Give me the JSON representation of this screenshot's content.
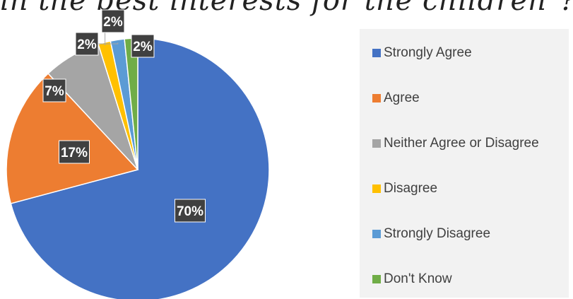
{
  "title": "in the best interests for the children\"?",
  "colors": {
    "strongly_agree": "#4472c4",
    "agree": "#ed7d31",
    "neither": "#a5a5a5",
    "disagree": "#ffc000",
    "strongly_disagree": "#5b9bd5",
    "dont_know": "#70ad47"
  },
  "chart_data": {
    "type": "pie",
    "legend_position": "right",
    "slices": [
      {
        "label": "Strongly Agree",
        "value": 70,
        "data_label": "70%",
        "color": "#4472c4"
      },
      {
        "label": "Agree",
        "value": 17,
        "data_label": "17%",
        "color": "#ed7d31"
      },
      {
        "label": "Neither Agree or Disagree",
        "value": 7,
        "data_label": "7%",
        "color": "#a5a5a5"
      },
      {
        "label": "Disagree",
        "value": 1.5,
        "data_label": "2%",
        "color": "#ffc000"
      },
      {
        "label": "Strongly Disagree",
        "value": 1.7,
        "data_label": "2%",
        "color": "#5b9bd5"
      },
      {
        "label": "Don't Know",
        "value": 1.6,
        "data_label": "2%",
        "color": "#70ad47"
      }
    ]
  }
}
